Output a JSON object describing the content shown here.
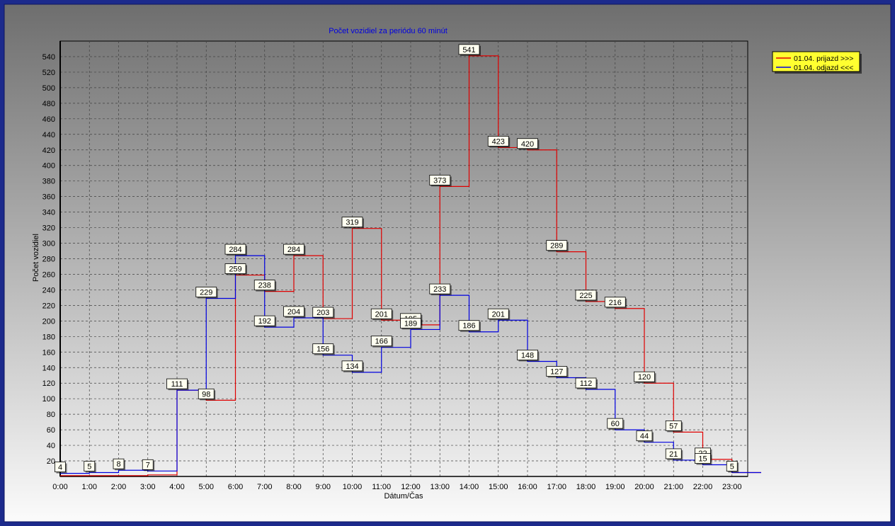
{
  "colors": {
    "frame": "#1c2a8c",
    "series_arrivals": "#e00000",
    "series_departures": "#0000e0",
    "label_bg": "#fffff0",
    "legend_bg": "#ffff30"
  },
  "chart_data": {
    "type": "line",
    "step": true,
    "title": "Počet vozidiel za periódu 60 minút",
    "xlabel": "Dátum/Čas",
    "ylabel": "Počet vozidiel",
    "categories": [
      "0:00",
      "1:00",
      "2:00",
      "3:00",
      "4:00",
      "5:00",
      "6:00",
      "7:00",
      "8:00",
      "9:00",
      "10:00",
      "11:00",
      "12:00",
      "13:00",
      "14:00",
      "15:00",
      "16:00",
      "17:00",
      "18:00",
      "19:00",
      "20:00",
      "21:00",
      "22:00",
      "23:00"
    ],
    "yticks": [
      20,
      40,
      60,
      80,
      100,
      120,
      140,
      160,
      180,
      200,
      220,
      240,
      260,
      280,
      300,
      320,
      340,
      360,
      380,
      400,
      420,
      440,
      460,
      480,
      500,
      520,
      540
    ],
    "ylim": [
      0,
      560
    ],
    "grid": true,
    "legend_position": "top-right",
    "series": [
      {
        "name": "01.04.  prijazd >>>",
        "values": [
          1,
          1,
          1,
          2,
          111,
          98,
          259,
          238,
          284,
          203,
          319,
          201,
          195,
          373,
          541,
          423,
          420,
          289,
          225,
          216,
          120,
          57,
          22,
          5
        ]
      },
      {
        "name": "01.04.  odjazd <<<",
        "values": [
          4,
          5,
          8,
          7,
          111,
          229,
          284,
          192,
          204,
          156,
          134,
          166,
          189,
          233,
          186,
          201,
          148,
          127,
          112,
          60,
          44,
          21,
          15,
          5
        ]
      }
    ],
    "data_labels": [
      {
        "x": "0:00",
        "text": "4"
      },
      {
        "x": "1:00",
        "text": "5"
      },
      {
        "x": "2:00",
        "text": "8"
      },
      {
        "x": "3:00",
        "text": "7"
      },
      {
        "x": "4:00",
        "text": "111"
      },
      {
        "x": "5:00",
        "text": "229"
      },
      {
        "x": "5:00",
        "text": "98"
      },
      {
        "x": "6:00",
        "text": "284"
      },
      {
        "x": "6:00",
        "text": "259"
      },
      {
        "x": "7:00",
        "text": "238"
      },
      {
        "x": "7:00",
        "text": "192"
      },
      {
        "x": "8:00",
        "text": "284"
      },
      {
        "x": "8:00",
        "text": "204"
      },
      {
        "x": "9:00",
        "text": "203"
      },
      {
        "x": "9:00",
        "text": "156"
      },
      {
        "x": "10:00",
        "text": "319"
      },
      {
        "x": "10:00",
        "text": "134"
      },
      {
        "x": "11:00",
        "text": "201"
      },
      {
        "x": "11:00",
        "text": "166"
      },
      {
        "x": "12:00",
        "text": "195"
      },
      {
        "x": "12:00",
        "text": "189"
      },
      {
        "x": "13:00",
        "text": "373"
      },
      {
        "x": "13:00",
        "text": "233"
      },
      {
        "x": "14:00",
        "text": "541"
      },
      {
        "x": "14:00",
        "text": "186"
      },
      {
        "x": "15:00",
        "text": "423"
      },
      {
        "x": "15:00",
        "text": "201"
      },
      {
        "x": "16:00",
        "text": "420"
      },
      {
        "x": "16:00",
        "text": "148"
      },
      {
        "x": "17:00",
        "text": "289"
      },
      {
        "x": "17:00",
        "text": "127"
      },
      {
        "x": "18:00",
        "text": "225"
      },
      {
        "x": "18:00",
        "text": "112"
      },
      {
        "x": "19:00",
        "text": "216"
      },
      {
        "x": "19:00",
        "text": "60"
      },
      {
        "x": "20:00",
        "text": "120"
      },
      {
        "x": "20:00",
        "text": "44"
      },
      {
        "x": "21:00",
        "text": "57"
      },
      {
        "x": "21:00",
        "text": "21"
      },
      {
        "x": "22:00",
        "text": "22"
      },
      {
        "x": "22:00",
        "text": "15"
      },
      {
        "x": "23:00",
        "text": "5"
      }
    ]
  }
}
